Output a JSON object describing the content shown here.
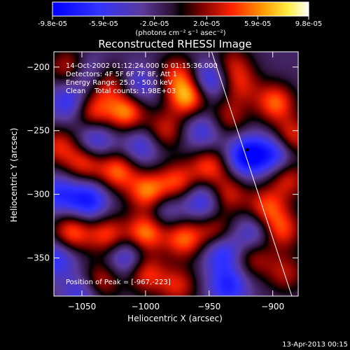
{
  "colorbar": {
    "tick_labels": [
      "-9.8e-05",
      "-5.9e-05",
      "-2.0e-05",
      "2.0e-05",
      "5.9e-05",
      "9.8e-05"
    ],
    "ticks": [
      -9.8e-05,
      -5.9e-05,
      -2e-05,
      2e-05,
      5.9e-05,
      9.8e-05
    ],
    "range": [
      -9.8e-05,
      9.8e-05
    ],
    "units_label": "(photons cm⁻² s⁻¹ asec⁻²)"
  },
  "chart_data": {
    "type": "heatmap",
    "title": "Reconstructed RHESSI Image",
    "xlabel": "Heliocentric X (arcsec)",
    "ylabel": "Heliocentric Y (arcsec)",
    "xlim": [
      -1072,
      -880
    ],
    "ylim": [
      -380,
      -188
    ],
    "x_ticks": [
      -1050,
      -1000,
      -950,
      -900
    ],
    "y_ticks": [
      -200,
      -250,
      -300,
      -350
    ],
    "x_tick_labels": [
      "−1050",
      "−1000",
      "−950",
      "−900"
    ],
    "y_tick_labels": [
      "−200",
      "−250",
      "−300",
      "−350"
    ],
    "annotations": [
      "14-Oct-2002 01:12:24.000 to 01:15:36.000",
      "Detectors: 4F 5F 6F 7F 8F, Att 1",
      "Energy Range: 25.0 - 50.0 keV",
      "Clean    Total counts: 1.98E+03"
    ],
    "peak_label": "Position of Peak = [-967,-223]",
    "peak_position": [
      -967,
      -223
    ],
    "sources": [
      {
        "x": -1060,
        "y": -200,
        "v": 0.6
      },
      {
        "x": -1030,
        "y": -213,
        "v": 0.6
      },
      {
        "x": -975,
        "y": -205,
        "v": 0.6
      },
      {
        "x": -967,
        "y": -223,
        "v": 1.0
      },
      {
        "x": -932,
        "y": -198,
        "v": 0.5
      },
      {
        "x": -1042,
        "y": -235,
        "v": 0.7
      },
      {
        "x": -1015,
        "y": -235,
        "v": 0.9
      },
      {
        "x": -985,
        "y": -250,
        "v": 0.6
      },
      {
        "x": -925,
        "y": -215,
        "v": 0.5
      },
      {
        "x": -935,
        "y": -240,
        "v": 0.5
      },
      {
        "x": -898,
        "y": -228,
        "v": 0.8
      },
      {
        "x": -885,
        "y": -255,
        "v": 0.7
      },
      {
        "x": -1068,
        "y": -262,
        "v": 0.6
      },
      {
        "x": -1048,
        "y": -275,
        "v": 0.7
      },
      {
        "x": -1022,
        "y": -282,
        "v": 0.8
      },
      {
        "x": -998,
        "y": -298,
        "v": 0.9
      },
      {
        "x": -975,
        "y": -290,
        "v": 0.7
      },
      {
        "x": -950,
        "y": -278,
        "v": 0.7
      },
      {
        "x": -935,
        "y": -300,
        "v": 0.6
      },
      {
        "x": -905,
        "y": -310,
        "v": 0.7
      },
      {
        "x": -888,
        "y": -288,
        "v": 0.6
      },
      {
        "x": -1058,
        "y": -330,
        "v": 0.8
      },
      {
        "x": -1030,
        "y": -332,
        "v": 0.7
      },
      {
        "x": -1000,
        "y": -330,
        "v": 0.9
      },
      {
        "x": -970,
        "y": -335,
        "v": 0.8
      },
      {
        "x": -945,
        "y": -330,
        "v": 0.6
      },
      {
        "x": -915,
        "y": -350,
        "v": 0.5
      },
      {
        "x": -893,
        "y": -328,
        "v": 0.7
      },
      {
        "x": -1035,
        "y": -368,
        "v": 0.6
      },
      {
        "x": -1000,
        "y": -362,
        "v": 0.7
      },
      {
        "x": -975,
        "y": -372,
        "v": 0.6
      },
      {
        "x": -890,
        "y": -362,
        "v": 0.5
      },
      {
        "x": -1060,
        "y": -228,
        "v": -0.6
      },
      {
        "x": -1045,
        "y": -205,
        "v": -0.5
      },
      {
        "x": -1005,
        "y": -215,
        "v": -0.5
      },
      {
        "x": -950,
        "y": -210,
        "v": -0.7
      },
      {
        "x": -955,
        "y": -250,
        "v": -0.5
      },
      {
        "x": -1040,
        "y": -258,
        "v": -0.6
      },
      {
        "x": -1003,
        "y": -262,
        "v": -0.5
      },
      {
        "x": -920,
        "y": -270,
        "v": -1.0
      },
      {
        "x": -898,
        "y": -268,
        "v": -0.7
      },
      {
        "x": -1045,
        "y": -305,
        "v": -0.8
      },
      {
        "x": -1068,
        "y": -300,
        "v": -0.6
      },
      {
        "x": -955,
        "y": -305,
        "v": -0.6
      },
      {
        "x": -940,
        "y": -345,
        "v": -0.7
      },
      {
        "x": -1070,
        "y": -350,
        "v": -0.6
      },
      {
        "x": -1015,
        "y": -350,
        "v": -0.6
      },
      {
        "x": -915,
        "y": -330,
        "v": -0.5
      },
      {
        "x": -935,
        "y": -372,
        "v": -0.7
      },
      {
        "x": -1050,
        "y": -378,
        "v": -0.5
      },
      {
        "x": -985,
        "y": -312,
        "v": -0.4
      }
    ],
    "limb_line": {
      "points": [
        [
          -948,
          -188
        ],
        [
          -885,
          -380
        ]
      ]
    },
    "peak_marker": [
      -920,
      -265
    ]
  },
  "footer": {
    "timestamp": "13-Apr-2013 00:15"
  }
}
